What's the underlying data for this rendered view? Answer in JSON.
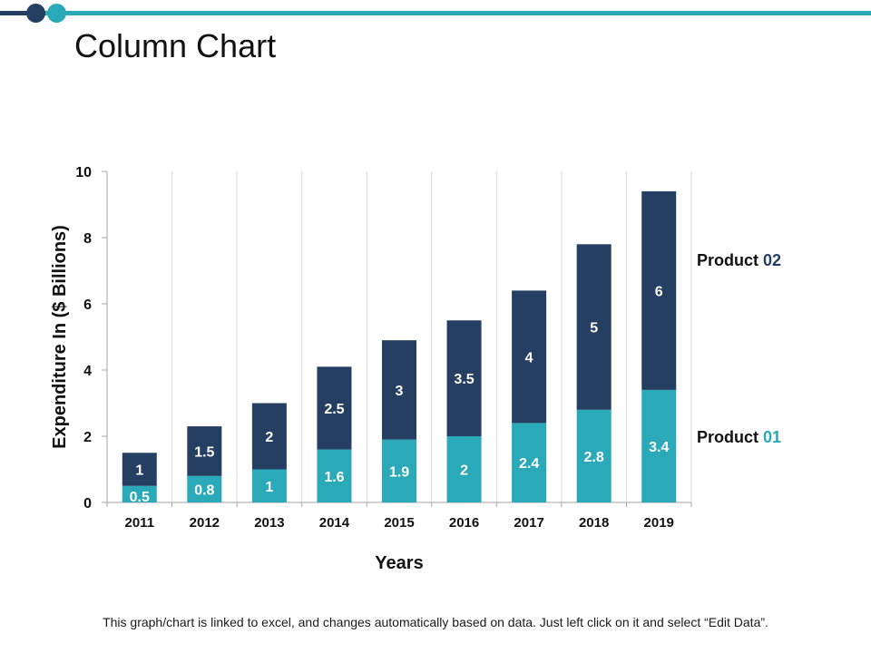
{
  "page": {
    "title": "Column Chart",
    "footer": "This graph/chart is linked to excel, and changes automatically  based on data. Just left click on it and select “Edit Data”."
  },
  "colors": {
    "product01": "#2aa9b8",
    "product02": "#253f62",
    "accent_line": "#2aa9b8"
  },
  "chart_data": {
    "type": "bar",
    "stacked": true,
    "title": "",
    "xlabel": "Years",
    "ylabel": "Expenditure In ($ Billions)",
    "ylim": [
      0,
      10
    ],
    "yticks": [
      0,
      2,
      4,
      6,
      8,
      10
    ],
    "categories": [
      "2011",
      "2012",
      "2013",
      "2014",
      "2015",
      "2016",
      "2017",
      "2018",
      "2019"
    ],
    "series": [
      {
        "name": "Product 01",
        "name_prefix": "Product ",
        "name_suffix": "01",
        "color": "#2aa9b8",
        "values": [
          0.5,
          0.8,
          1,
          1.6,
          1.9,
          2,
          2.4,
          2.8,
          3.4
        ]
      },
      {
        "name": "Product 02",
        "name_prefix": "Product ",
        "name_suffix": "02",
        "color": "#253f62",
        "values": [
          1,
          1.5,
          2,
          2.5,
          3,
          3.5,
          4,
          5,
          6
        ]
      }
    ],
    "legend": "right"
  }
}
